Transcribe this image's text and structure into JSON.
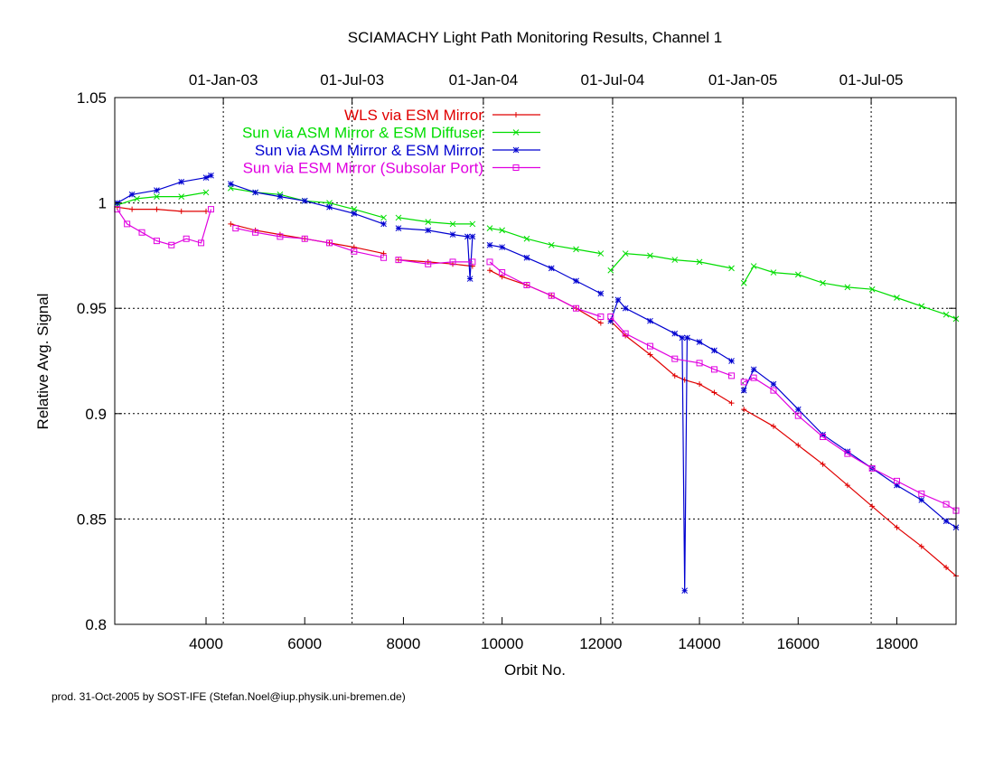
{
  "footer": "prod. 31-Oct-2005 by SOST-IFE (Stefan.Noel@iup.physik.uni-bremen.de)",
  "chart_data": {
    "type": "line",
    "title": "SCIAMACHY Light Path Monitoring Results, Channel 1",
    "xlabel": "Orbit No.",
    "ylabel": "Relative Avg. Signal",
    "xlim": [
      2150,
      19200
    ],
    "ylim": [
      0.8,
      1.05
    ],
    "x_ticks": [
      4000,
      6000,
      8000,
      10000,
      12000,
      14000,
      16000,
      18000
    ],
    "y_ticks": [
      0.8,
      0.85,
      0.9,
      0.95,
      1.0,
      1.05
    ],
    "y_tick_labels": [
      "0.8",
      "0.85",
      "0.9",
      "0.95",
      "1",
      "1.05"
    ],
    "top_axis": {
      "labels": [
        "01-Jan-03",
        "01-Jul-03",
        "01-Jan-04",
        "01-Jul-04",
        "01-Jan-05",
        "01-Jul-05"
      ],
      "orbits": [
        4350,
        6960,
        9620,
        12240,
        14880,
        17480
      ]
    },
    "grid": true,
    "legend_position": "top-right",
    "series": [
      {
        "name": "WLS via ESM Mirror",
        "color": "#e00000",
        "marker": "plus",
        "segments": [
          [
            [
              2200,
              0.998
            ],
            [
              2500,
              0.997
            ],
            [
              3000,
              0.997
            ],
            [
              3500,
              0.996
            ],
            [
              4000,
              0.996
            ]
          ],
          [
            [
              4500,
              0.99
            ],
            [
              5000,
              0.987
            ],
            [
              5500,
              0.985
            ],
            [
              6000,
              0.983
            ],
            [
              6500,
              0.981
            ],
            [
              7000,
              0.979
            ],
            [
              7600,
              0.976
            ]
          ],
          [
            [
              7900,
              0.973
            ],
            [
              8500,
              0.972
            ],
            [
              9000,
              0.971
            ],
            [
              9400,
              0.97
            ]
          ],
          [
            [
              9750,
              0.968
            ],
            [
              10000,
              0.965
            ],
            [
              10500,
              0.961
            ],
            [
              11000,
              0.956
            ],
            [
              11500,
              0.95
            ],
            [
              12000,
              0.943
            ]
          ],
          [
            [
              12200,
              0.944
            ],
            [
              12500,
              0.937
            ],
            [
              13000,
              0.928
            ],
            [
              13500,
              0.918
            ],
            [
              13700,
              0.916
            ],
            [
              14000,
              0.914
            ],
            [
              14300,
              0.91
            ],
            [
              14650,
              0.905
            ]
          ],
          [
            [
              14900,
              0.902
            ],
            [
              15500,
              0.894
            ],
            [
              16000,
              0.885
            ],
            [
              16500,
              0.876
            ],
            [
              17000,
              0.866
            ],
            [
              17500,
              0.856
            ],
            [
              18000,
              0.846
            ],
            [
              18500,
              0.837
            ],
            [
              19000,
              0.827
            ],
            [
              19200,
              0.823
            ]
          ]
        ]
      },
      {
        "name": "Sun via ASM Mirror & ESM Diffuser",
        "color": "#00dd00",
        "marker": "cross",
        "segments": [
          [
            [
              2200,
              0.999
            ],
            [
              2600,
              1.002
            ],
            [
              3000,
              1.003
            ],
            [
              3500,
              1.003
            ],
            [
              4000,
              1.005
            ]
          ],
          [
            [
              4500,
              1.007
            ],
            [
              5000,
              1.005
            ],
            [
              5500,
              1.004
            ],
            [
              6000,
              1.001
            ],
            [
              6500,
              1.0
            ],
            [
              7000,
              0.997
            ],
            [
              7600,
              0.993
            ]
          ],
          [
            [
              7900,
              0.993
            ],
            [
              8500,
              0.991
            ],
            [
              9000,
              0.99
            ],
            [
              9400,
              0.99
            ]
          ],
          [
            [
              9750,
              0.988
            ],
            [
              10000,
              0.987
            ],
            [
              10500,
              0.983
            ],
            [
              11000,
              0.98
            ],
            [
              11500,
              0.978
            ],
            [
              12000,
              0.976
            ]
          ],
          [
            [
              12200,
              0.968
            ],
            [
              12500,
              0.976
            ],
            [
              13000,
              0.975
            ],
            [
              13500,
              0.973
            ],
            [
              14000,
              0.972
            ],
            [
              14650,
              0.969
            ]
          ],
          [
            [
              14900,
              0.962
            ],
            [
              15100,
              0.97
            ],
            [
              15500,
              0.967
            ],
            [
              16000,
              0.966
            ],
            [
              16500,
              0.962
            ],
            [
              17000,
              0.96
            ],
            [
              17500,
              0.959
            ],
            [
              18000,
              0.955
            ],
            [
              18500,
              0.951
            ],
            [
              19000,
              0.947
            ],
            [
              19200,
              0.945
            ]
          ]
        ]
      },
      {
        "name": "Sun via ASM Mirror & ESM Mirror",
        "color": "#0000d0",
        "marker": "star",
        "segments": [
          [
            [
              2200,
              1.0
            ],
            [
              2500,
              1.004
            ],
            [
              3000,
              1.006
            ],
            [
              3500,
              1.01
            ],
            [
              4000,
              1.012
            ],
            [
              4100,
              1.013
            ]
          ],
          [
            [
              4500,
              1.009
            ],
            [
              5000,
              1.005
            ],
            [
              5500,
              1.003
            ],
            [
              6000,
              1.001
            ],
            [
              6500,
              0.998
            ],
            [
              7000,
              0.995
            ],
            [
              7600,
              0.99
            ]
          ],
          [
            [
              7900,
              0.988
            ],
            [
              8500,
              0.987
            ],
            [
              9000,
              0.985
            ],
            [
              9300,
              0.984
            ],
            [
              9350,
              0.964
            ],
            [
              9400,
              0.984
            ]
          ],
          [
            [
              9750,
              0.98
            ],
            [
              10000,
              0.979
            ],
            [
              10500,
              0.974
            ],
            [
              11000,
              0.969
            ],
            [
              11500,
              0.963
            ],
            [
              12000,
              0.957
            ]
          ],
          [
            [
              12200,
              0.944
            ],
            [
              12350,
              0.954
            ],
            [
              12500,
              0.95
            ],
            [
              13000,
              0.944
            ],
            [
              13500,
              0.938
            ],
            [
              13650,
              0.936
            ],
            [
              13700,
              0.816
            ],
            [
              13750,
              0.936
            ],
            [
              14000,
              0.934
            ],
            [
              14300,
              0.93
            ],
            [
              14650,
              0.925
            ]
          ],
          [
            [
              14900,
              0.911
            ],
            [
              15100,
              0.921
            ],
            [
              15500,
              0.914
            ],
            [
              16000,
              0.902
            ],
            [
              16500,
              0.89
            ],
            [
              17000,
              0.882
            ],
            [
              17500,
              0.874
            ],
            [
              18000,
              0.866
            ],
            [
              18500,
              0.859
            ],
            [
              19000,
              0.849
            ],
            [
              19200,
              0.846
            ]
          ]
        ]
      },
      {
        "name": "Sun via ESM Mirror (Subsolar Port)",
        "color": "#e000e0",
        "marker": "box",
        "segments": [
          [
            [
              2200,
              0.997
            ],
            [
              2400,
              0.99
            ],
            [
              2700,
              0.986
            ],
            [
              3000,
              0.982
            ],
            [
              3300,
              0.98
            ],
            [
              3600,
              0.983
            ],
            [
              3900,
              0.981
            ],
            [
              4100,
              0.997
            ]
          ],
          [
            [
              4600,
              0.988
            ],
            [
              5000,
              0.986
            ],
            [
              5500,
              0.984
            ],
            [
              6000,
              0.983
            ],
            [
              6500,
              0.981
            ],
            [
              7000,
              0.977
            ],
            [
              7600,
              0.974
            ]
          ],
          [
            [
              7900,
              0.973
            ],
            [
              8500,
              0.971
            ],
            [
              9000,
              0.972
            ],
            [
              9400,
              0.972
            ]
          ],
          [
            [
              9750,
              0.972
            ],
            [
              10000,
              0.967
            ],
            [
              10500,
              0.961
            ],
            [
              11000,
              0.956
            ],
            [
              11500,
              0.95
            ],
            [
              12000,
              0.946
            ]
          ],
          [
            [
              12200,
              0.946
            ],
            [
              12500,
              0.938
            ],
            [
              13000,
              0.932
            ],
            [
              13500,
              0.926
            ],
            [
              14000,
              0.924
            ],
            [
              14300,
              0.921
            ],
            [
              14650,
              0.918
            ]
          ],
          [
            [
              14900,
              0.915
            ],
            [
              15100,
              0.917
            ],
            [
              15500,
              0.911
            ],
            [
              16000,
              0.899
            ],
            [
              16500,
              0.889
            ],
            [
              17000,
              0.881
            ],
            [
              17500,
              0.874
            ],
            [
              18000,
              0.868
            ],
            [
              18500,
              0.862
            ],
            [
              19000,
              0.857
            ],
            [
              19200,
              0.854
            ]
          ]
        ]
      }
    ]
  }
}
